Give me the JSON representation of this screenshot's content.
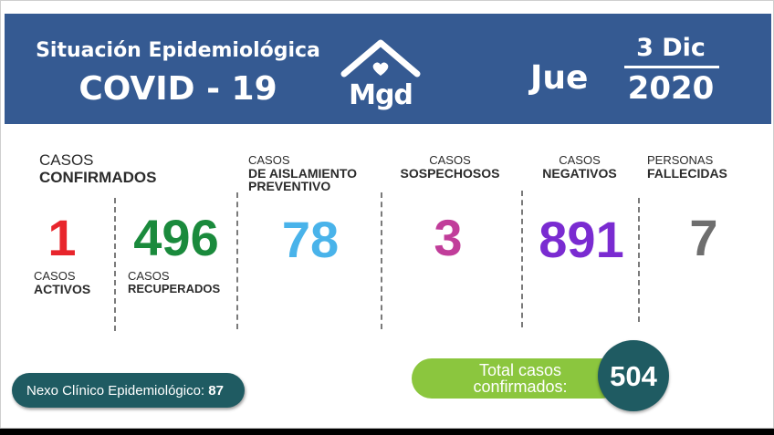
{
  "header": {
    "title_line1": "Situación Epidemiológica",
    "title_line2": "COVID - 19",
    "logo_text": "Mgd",
    "logo_icon": "house-heart-icon",
    "day": "Jue",
    "date_top": "3 Dic",
    "date_bottom": "2020"
  },
  "confirmados": {
    "label_line1": "CASOS",
    "label_line2": "CONFIRMADOS",
    "activos": {
      "value": "1",
      "label_line1": "CASOS",
      "label_line2": "ACTIVOS",
      "color": "#e8252c"
    },
    "recuperados": {
      "value": "496",
      "label_line1": "CASOS",
      "label_line2": "RECUPERADOS",
      "color": "#1a8a3c"
    }
  },
  "aislamiento": {
    "label_line1": "CASOS",
    "label_line2": "DE AISLAMIENTO",
    "label_line3": "PREVENTIVO",
    "value": "78",
    "color": "#49b3ea"
  },
  "sospechosos": {
    "label_line1": "CASOS",
    "label_line2": "SOSPECHOSOS",
    "value": "3",
    "color": "#c13d9a"
  },
  "negativos": {
    "label_line1": "CASOS",
    "label_line2": "NEGATIVOS",
    "value": "891",
    "color": "#7a2bd1"
  },
  "fallecidas": {
    "label_line1": "PERSONAS",
    "label_line2": "FALLECIDAS",
    "value": "7",
    "color": "#6e6e6e"
  },
  "nexo": {
    "label": "Nexo Clínico Epidemiológico:",
    "value": "87"
  },
  "total": {
    "label_line1": "Total casos",
    "label_line2": "confirmados:",
    "value": "504"
  }
}
